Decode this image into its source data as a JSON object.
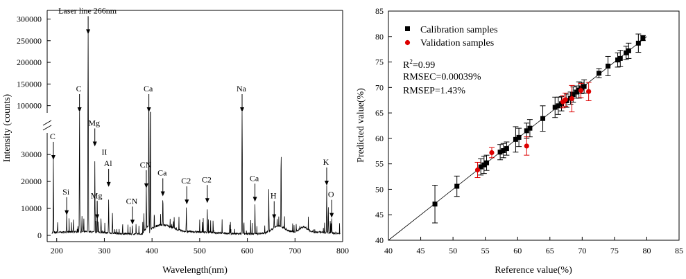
{
  "chart_data": [
    {
      "type": "line",
      "xlabel": "Wavelength(nm)",
      "ylabel": "Intensity (counts)",
      "xlim": [
        180,
        800
      ],
      "xticks": [
        200,
        300,
        400,
        500,
        600,
        700,
        800
      ],
      "ylim_lower": [
        0,
        38000
      ],
      "yticks_lower": [
        0,
        10000,
        20000,
        30000
      ],
      "ylim_upper": [
        85000,
        320000
      ],
      "yticks_upper": [
        100000,
        150000,
        200000,
        250000,
        300000
      ],
      "annotations": [
        {
          "label": "Laser line 266nm",
          "x": 266,
          "y": 265000,
          "small": true
        },
        {
          "label": "C",
          "x": 247.9,
          "y": 75000
        },
        {
          "label": "Mg",
          "x": 280,
          "y": 33000
        },
        {
          "label": "II",
          "x": 300,
          "y": 31000,
          "noarrow": true
        },
        {
          "label": "Ca",
          "x": 393.4,
          "y": 75000
        },
        {
          "label": "Na",
          "x": 589,
          "y": 75000
        },
        {
          "label": "C",
          "x": 193,
          "y": 28000
        },
        {
          "label": "Al",
          "x": 309,
          "y": 18000
        },
        {
          "label": "CN",
          "x": 388,
          "y": 17500
        },
        {
          "label": "Ca",
          "x": 422.7,
          "y": 14500
        },
        {
          "label": "C2",
          "x": 473,
          "y": 11500
        },
        {
          "label": "C2",
          "x": 516,
          "y": 12000
        },
        {
          "label": "Si",
          "x": 221,
          "y": 7500
        },
        {
          "label": "Mg",
          "x": 285,
          "y": 6000
        },
        {
          "label": "CN",
          "x": 359,
          "y": 4000
        },
        {
          "label": "Ca",
          "x": 616,
          "y": 12500
        },
        {
          "label": "H",
          "x": 656.3,
          "y": 6000
        },
        {
          "label": "K",
          "x": 766.5,
          "y": 18500
        },
        {
          "label": "O",
          "x": 777,
          "y": 6500
        }
      ],
      "peaks": [
        [
          193,
          27500
        ],
        [
          202,
          3500
        ],
        [
          221,
          5000
        ],
        [
          235,
          4500
        ],
        [
          247.9,
          55000
        ],
        [
          253,
          5500
        ],
        [
          266,
          275000
        ],
        [
          280,
          26000
        ],
        [
          285,
          12000
        ],
        [
          293,
          5500
        ],
        [
          309,
          12500
        ],
        [
          317,
          7500
        ],
        [
          359,
          3000
        ],
        [
          383,
          7000
        ],
        [
          388,
          16500
        ],
        [
          393.4,
          95000
        ],
        [
          396.8,
          92000
        ],
        [
          422.7,
          11000
        ],
        [
          445,
          2500
        ],
        [
          472,
          9000
        ],
        [
          516,
          8500
        ],
        [
          589,
          80000
        ],
        [
          616,
          11000
        ],
        [
          645,
          15500
        ],
        [
          656.3,
          6000
        ],
        [
          670.8,
          30500
        ],
        [
          766.5,
          17500
        ],
        [
          769.9,
          10000
        ],
        [
          777,
          5500
        ]
      ]
    },
    {
      "type": "scatter",
      "xlabel": "Reference value(%)",
      "ylabel": "Predicted value(%)",
      "xlim": [
        40,
        85
      ],
      "ylim": [
        40,
        85
      ],
      "xticks": [
        40,
        45,
        50,
        55,
        60,
        65,
        70,
        75,
        80,
        85
      ],
      "yticks": [
        40,
        45,
        50,
        55,
        60,
        65,
        70,
        75,
        80,
        85
      ],
      "legend": [
        "Calibration samples",
        "Validation samples"
      ],
      "stats": {
        "r2_prefix": "R",
        "r2_sup": "2",
        "r2_value": "=0.99",
        "rmsec": "RMSEC=0.00039%",
        "rmsep": "RMSEP=1.43%"
      },
      "fit_line": {
        "x": [
          40,
          80
        ],
        "y": [
          40,
          80
        ]
      },
      "series": [
        {
          "name": "Calibration samples",
          "color": "#000000",
          "points": [
            {
              "x": 47.2,
              "y": 47.1,
              "err": 3.7
            },
            {
              "x": 50.6,
              "y": 50.6,
              "err": 2.0
            },
            {
              "x": 54.3,
              "y": 54.4,
              "err": 1.6
            },
            {
              "x": 54.8,
              "y": 54.8,
              "err": 1.7
            },
            {
              "x": 55.2,
              "y": 55.2,
              "err": 1.5
            },
            {
              "x": 57.3,
              "y": 57.3,
              "err": 1.5
            },
            {
              "x": 57.8,
              "y": 57.6,
              "err": 1.4
            },
            {
              "x": 58.3,
              "y": 58.0,
              "err": 1.3
            },
            {
              "x": 59.7,
              "y": 59.8,
              "err": 2.5
            },
            {
              "x": 60.2,
              "y": 60.2,
              "err": 1.8
            },
            {
              "x": 61.4,
              "y": 61.5,
              "err": 1.5
            },
            {
              "x": 61.9,
              "y": 62.0,
              "err": 1.7
            },
            {
              "x": 63.9,
              "y": 63.9,
              "err": 2.5
            },
            {
              "x": 65.8,
              "y": 66.1,
              "err": 2.0
            },
            {
              "x": 66.3,
              "y": 66.4,
              "err": 1.7
            },
            {
              "x": 66.8,
              "y": 66.8,
              "err": 1.4
            },
            {
              "x": 67.6,
              "y": 67.4,
              "err": 1.3
            },
            {
              "x": 68.2,
              "y": 67.9,
              "err": 1.2
            },
            {
              "x": 68.6,
              "y": 68.6,
              "err": 1.5
            },
            {
              "x": 69.1,
              "y": 69.1,
              "err": 1.2
            },
            {
              "x": 69.5,
              "y": 69.5,
              "err": 1.6
            },
            {
              "x": 69.9,
              "y": 69.9,
              "err": 1.1
            },
            {
              "x": 70.3,
              "y": 70.2,
              "err": 1.3
            },
            {
              "x": 72.6,
              "y": 72.8,
              "err": 0.9
            },
            {
              "x": 74.0,
              "y": 74.2,
              "err": 1.9
            },
            {
              "x": 75.5,
              "y": 75.4,
              "err": 1.4
            },
            {
              "x": 75.9,
              "y": 75.7,
              "err": 1.6
            },
            {
              "x": 76.8,
              "y": 76.8,
              "err": 1.3
            },
            {
              "x": 77.2,
              "y": 77.2,
              "err": 1.5
            },
            {
              "x": 78.7,
              "y": 78.7,
              "err": 1.8
            },
            {
              "x": 79.4,
              "y": 79.7,
              "err": 0.5
            }
          ]
        },
        {
          "name": "Validation samples",
          "color": "#dd0000",
          "points": [
            {
              "x": 53.8,
              "y": 53.8,
              "err": 1.5
            },
            {
              "x": 56.0,
              "y": 57.2,
              "err": 1.0
            },
            {
              "x": 61.4,
              "y": 58.5,
              "err": 1.8
            },
            {
              "x": 67.0,
              "y": 67.2,
              "err": 1.2
            },
            {
              "x": 67.4,
              "y": 67.6,
              "err": 1.3
            },
            {
              "x": 68.4,
              "y": 67.8,
              "err": 2.6
            },
            {
              "x": 69.8,
              "y": 69.4,
              "err": 1.4
            },
            {
              "x": 71.0,
              "y": 69.2,
              "err": 1.8
            }
          ]
        }
      ]
    }
  ]
}
